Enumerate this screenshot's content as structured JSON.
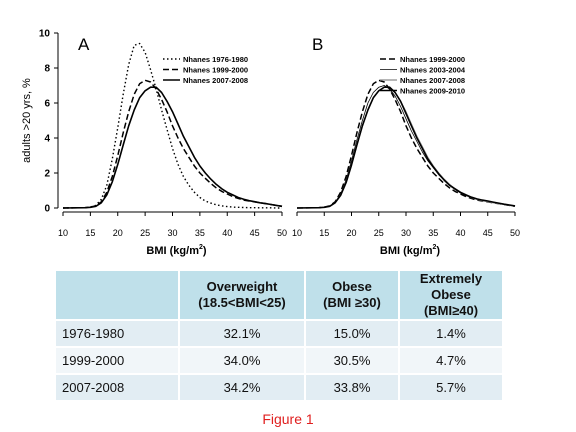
{
  "chart_data": [
    {
      "type": "line",
      "panel_label": "A",
      "xlabel": "BMI (kg/m",
      "xlabel_sup": "2",
      "xlabel_end": ")",
      "ylabel": "adults >20 yrs, %",
      "xlim": [
        10,
        50
      ],
      "ylim": [
        0,
        10
      ],
      "xticks": [
        "10",
        "15",
        "20",
        "25",
        "30",
        "35",
        "40",
        "45",
        "50"
      ],
      "yticks": [
        "0",
        "2",
        "4",
        "6",
        "8",
        "10"
      ],
      "legend_position": "top-right",
      "series": [
        {
          "name": "Nhanes 1976-1980",
          "style": "dotted",
          "x": [
            10,
            14,
            15,
            16,
            17,
            18,
            19,
            20,
            21,
            22,
            23,
            24,
            25,
            26,
            27,
            28,
            29,
            30,
            31,
            32,
            33,
            34,
            35,
            36,
            37,
            38,
            39,
            40,
            41,
            42,
            43,
            44,
            45,
            46,
            47,
            48,
            49,
            50
          ],
          "y": [
            0,
            0.02,
            0.05,
            0.15,
            0.5,
            1.3,
            2.8,
            4.6,
            6.5,
            8.2,
            9.3,
            9.4,
            8.9,
            7.9,
            6.8,
            5.6,
            4.5,
            3.4,
            2.5,
            1.8,
            1.3,
            0.9,
            0.6,
            0.4,
            0.28,
            0.18,
            0.12,
            0.08,
            0.05,
            0.04,
            0.03,
            0.02,
            0.02,
            0.01,
            0.01,
            0.01,
            0,
            0
          ]
        },
        {
          "name": "Nhanes 1999-2000",
          "style": "dashed",
          "x": [
            10,
            14,
            15,
            16,
            17,
            18,
            19,
            20,
            21,
            22,
            23,
            24,
            25,
            26,
            27,
            28,
            29,
            30,
            31,
            32,
            33,
            34,
            35,
            36,
            37,
            38,
            39,
            40,
            41,
            42,
            43,
            44,
            45,
            46,
            47,
            48,
            49,
            50
          ],
          "y": [
            0,
            0.02,
            0.05,
            0.12,
            0.35,
            0.9,
            1.8,
            3.0,
            4.3,
            5.5,
            6.5,
            7.1,
            7.3,
            7.2,
            6.8,
            6.2,
            5.5,
            4.7,
            4.0,
            3.4,
            2.9,
            2.4,
            2.0,
            1.7,
            1.4,
            1.15,
            0.95,
            0.8,
            0.65,
            0.55,
            0.45,
            0.4,
            0.35,
            0.3,
            0.25,
            0.2,
            0.15,
            0.1
          ]
        },
        {
          "name": "Nhanes 2007-2008",
          "style": "solid",
          "x": [
            10,
            14,
            15,
            16,
            17,
            18,
            19,
            20,
            21,
            22,
            23,
            24,
            25,
            26,
            27,
            28,
            29,
            30,
            31,
            32,
            33,
            34,
            35,
            36,
            37,
            38,
            39,
            40,
            41,
            42,
            43,
            44,
            45,
            46,
            47,
            48,
            49,
            50
          ],
          "y": [
            0,
            0.02,
            0.04,
            0.1,
            0.3,
            0.75,
            1.5,
            2.5,
            3.6,
            4.7,
            5.6,
            6.3,
            6.7,
            6.9,
            6.9,
            6.6,
            6.1,
            5.5,
            4.8,
            4.1,
            3.5,
            2.9,
            2.4,
            2.0,
            1.65,
            1.35,
            1.1,
            0.9,
            0.75,
            0.6,
            0.5,
            0.42,
            0.36,
            0.3,
            0.25,
            0.2,
            0.15,
            0.1
          ]
        }
      ]
    },
    {
      "type": "line",
      "panel_label": "B",
      "xlabel": "BMI (kg/m",
      "xlabel_sup": "2",
      "xlabel_end": ")",
      "xlim": [
        10,
        50
      ],
      "ylim": [
        0,
        10
      ],
      "xticks": [
        "10",
        "15",
        "20",
        "25",
        "30",
        "35",
        "40",
        "45",
        "50"
      ],
      "legend_position": "top-right",
      "series": [
        {
          "name": "Nhanes 1999-2000",
          "style": "dashed",
          "x": [
            10,
            14,
            15,
            16,
            17,
            18,
            19,
            20,
            21,
            22,
            23,
            24,
            25,
            26,
            27,
            28,
            29,
            30,
            31,
            32,
            33,
            34,
            35,
            36,
            37,
            38,
            39,
            40,
            41,
            42,
            43,
            44,
            45,
            46,
            47,
            48,
            49,
            50
          ],
          "y": [
            0,
            0.02,
            0.05,
            0.12,
            0.35,
            0.9,
            1.8,
            3.0,
            4.3,
            5.5,
            6.5,
            7.1,
            7.3,
            7.2,
            6.8,
            6.2,
            5.5,
            4.7,
            4.0,
            3.4,
            2.9,
            2.4,
            2.0,
            1.7,
            1.4,
            1.15,
            0.95,
            0.8,
            0.65,
            0.55,
            0.45,
            0.4,
            0.35,
            0.3,
            0.25,
            0.2,
            0.15,
            0.1
          ]
        },
        {
          "name": "Nhanes 2003-2004",
          "style": "solid-thin",
          "x": [
            10,
            14,
            15,
            16,
            17,
            18,
            19,
            20,
            21,
            22,
            23,
            24,
            25,
            26,
            27,
            28,
            29,
            30,
            31,
            32,
            33,
            34,
            35,
            36,
            37,
            38,
            39,
            40,
            41,
            42,
            43,
            44,
            45,
            46,
            47,
            48,
            49,
            50
          ],
          "y": [
            0,
            0.02,
            0.04,
            0.11,
            0.32,
            0.8,
            1.6,
            2.7,
            3.9,
            5.0,
            6.0,
            6.6,
            6.9,
            7.0,
            6.8,
            6.4,
            5.8,
            5.1,
            4.4,
            3.8,
            3.2,
            2.7,
            2.3,
            1.9,
            1.6,
            1.3,
            1.05,
            0.85,
            0.7,
            0.6,
            0.5,
            0.42,
            0.38,
            0.32,
            0.27,
            0.22,
            0.17,
            0.12
          ]
        },
        {
          "name": "Nhanes 2007-2008",
          "style": "solid-grey",
          "x": [
            10,
            14,
            15,
            16,
            17,
            18,
            19,
            20,
            21,
            22,
            23,
            24,
            25,
            26,
            27,
            28,
            29,
            30,
            31,
            32,
            33,
            34,
            35,
            36,
            37,
            38,
            39,
            40,
            41,
            42,
            43,
            44,
            45,
            46,
            47,
            48,
            49,
            50
          ],
          "y": [
            0,
            0.02,
            0.04,
            0.1,
            0.3,
            0.75,
            1.5,
            2.5,
            3.6,
            4.7,
            5.6,
            6.3,
            6.7,
            6.9,
            6.9,
            6.6,
            6.1,
            5.5,
            4.8,
            4.1,
            3.5,
            2.9,
            2.4,
            2.0,
            1.65,
            1.35,
            1.1,
            0.9,
            0.75,
            0.6,
            0.5,
            0.42,
            0.36,
            0.3,
            0.25,
            0.2,
            0.15,
            0.1
          ]
        },
        {
          "name": "Nhanes 2009-2010",
          "style": "solid",
          "x": [
            10,
            14,
            15,
            16,
            17,
            18,
            19,
            20,
            21,
            22,
            23,
            24,
            25,
            26,
            27,
            28,
            29,
            30,
            31,
            32,
            33,
            34,
            35,
            36,
            37,
            38,
            39,
            40,
            41,
            42,
            43,
            44,
            45,
            46,
            47,
            48,
            49,
            50
          ],
          "y": [
            0,
            0.02,
            0.04,
            0.1,
            0.3,
            0.72,
            1.45,
            2.45,
            3.6,
            4.7,
            5.6,
            6.3,
            6.7,
            6.9,
            6.9,
            6.6,
            6.1,
            5.4,
            4.7,
            4.0,
            3.4,
            2.8,
            2.35,
            1.95,
            1.6,
            1.3,
            1.1,
            0.9,
            0.75,
            0.62,
            0.52,
            0.45,
            0.4,
            0.34,
            0.28,
            0.22,
            0.17,
            0.12
          ]
        }
      ]
    }
  ],
  "table": {
    "headers": [
      {
        "line1": "",
        "line2": ""
      },
      {
        "line1": "Overweight",
        "line2": "(18.5<BMI<25)"
      },
      {
        "line1": "Obese",
        "line2": "(BMI ≥30)"
      },
      {
        "line1": "Extremely Obese",
        "line2": "(BMI≥40)"
      }
    ],
    "rows": [
      {
        "label": "1976-1980",
        "values": [
          "32.1%",
          "15.0%",
          "1.4%"
        ]
      },
      {
        "label": "1999-2000",
        "values": [
          "34.0%",
          "30.5%",
          "4.7%"
        ]
      },
      {
        "label": "2007-2008",
        "values": [
          "34.2%",
          "33.8%",
          "5.7%"
        ]
      }
    ]
  },
  "caption": "Figure 1",
  "colors": {
    "table_header": "#bfe0ea",
    "row_odd": "#e2edf3",
    "row_even": "#f1f6f9",
    "caption": "#e01f1f",
    "grey_line": "#8a8a8a"
  }
}
